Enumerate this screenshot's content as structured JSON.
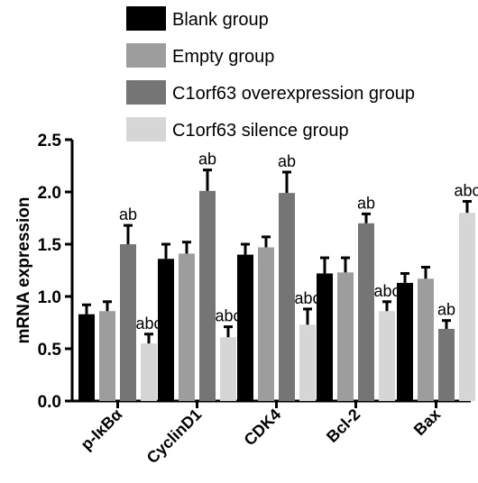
{
  "chart_data": {
    "type": "bar",
    "title": "",
    "xlabel": "",
    "ylabel": "mRNA expression",
    "ylim": [
      0,
      2.5
    ],
    "yticks": [
      "0.0",
      "0.5",
      "1.0",
      "1.5",
      "2.0",
      "2.5"
    ],
    "categories": [
      "p-IκBα",
      "CyclinD1",
      "CDK4",
      "Bcl-2",
      "Bax"
    ],
    "series": [
      {
        "name": "Blank group",
        "color": "#000000",
        "values": [
          0.83,
          1.36,
          1.4,
          1.22,
          1.13
        ],
        "errors": [
          0.09,
          0.14,
          0.1,
          0.15,
          0.09
        ],
        "labels": [
          "",
          "",
          "",
          "",
          ""
        ]
      },
      {
        "name": "Empty group",
        "color": "#9d9d9d",
        "values": [
          0.86,
          1.41,
          1.47,
          1.23,
          1.17
        ],
        "errors": [
          0.09,
          0.11,
          0.1,
          0.14,
          0.11
        ],
        "labels": [
          "",
          "",
          "",
          "",
          ""
        ]
      },
      {
        "name": "C1orf63 overexpression group",
        "color": "#757575",
        "values": [
          1.5,
          2.01,
          1.99,
          1.7,
          0.69
        ],
        "errors": [
          0.18,
          0.2,
          0.2,
          0.09,
          0.08
        ],
        "labels": [
          "ab",
          "ab",
          "ab",
          "ab",
          "ab"
        ]
      },
      {
        "name": "C1orf63 silence group",
        "color": "#d6d6d6",
        "values": [
          0.55,
          0.61,
          0.73,
          0.86,
          1.8
        ],
        "errors": [
          0.09,
          0.1,
          0.15,
          0.09,
          0.11
        ],
        "labels": [
          "abc",
          "abc",
          "abc",
          "abc",
          "abc"
        ]
      }
    ],
    "legend_position": "top",
    "grid": false
  }
}
